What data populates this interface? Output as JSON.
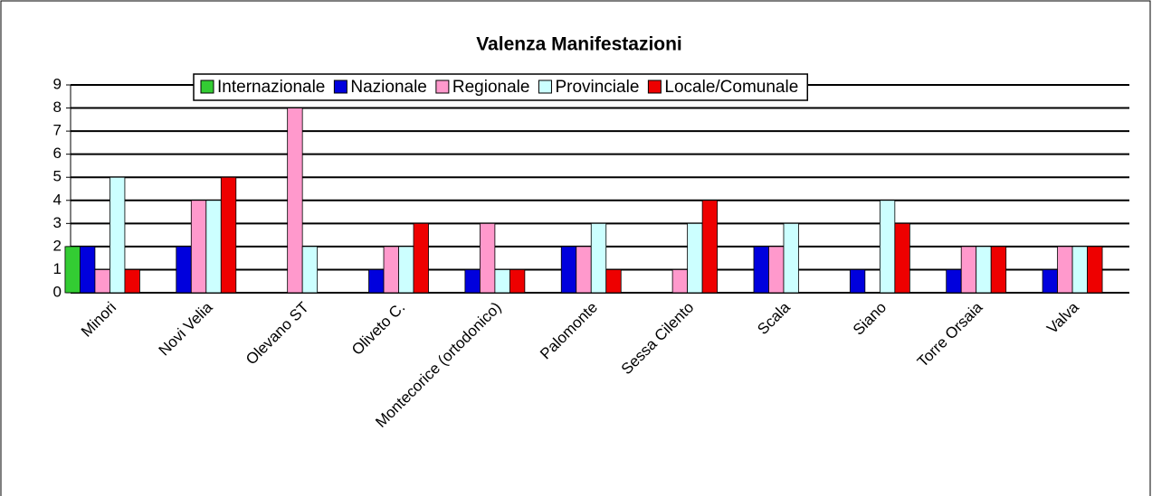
{
  "chart_data": {
    "type": "bar",
    "title": "Valenza Manifestazioni",
    "categories": [
      "Minori",
      "Novi Velia",
      "Olevano ST",
      "Oliveto C.",
      "Montecorice (ortodonico)",
      "Palomonte",
      "Sessa Cilento",
      "Scala",
      "Siano",
      "Torre Orsaia",
      "Valva"
    ],
    "series": [
      {
        "name": "Internazionale",
        "color": "#33cc33",
        "values": [
          2,
          0,
          0,
          0,
          0,
          0,
          0,
          0,
          0,
          0,
          0
        ]
      },
      {
        "name": "Nazionale",
        "color": "#0000dd",
        "values": [
          2,
          2,
          0,
          1,
          1,
          2,
          0,
          2,
          1,
          1,
          1
        ]
      },
      {
        "name": "Regionale",
        "color": "#ff99cc",
        "values": [
          1,
          4,
          8,
          2,
          3,
          2,
          1,
          2,
          0,
          2,
          2
        ]
      },
      {
        "name": "Provinciale",
        "color": "#ccffff",
        "values": [
          5,
          4,
          2,
          2,
          1,
          3,
          3,
          3,
          4,
          2,
          2
        ]
      },
      {
        "name": "Locale/Comunale",
        "color": "#ee0000",
        "values": [
          1,
          5,
          0,
          3,
          1,
          1,
          4,
          0,
          3,
          2,
          2
        ]
      }
    ],
    "ylim": [
      0,
      9
    ],
    "yticks": [
      0,
      1,
      2,
      3,
      4,
      5,
      6,
      7,
      8,
      9
    ],
    "grid": true,
    "legend": "top"
  }
}
